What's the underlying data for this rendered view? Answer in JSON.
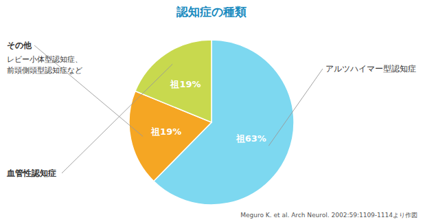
{
  "chart_data": {
    "type": "pie",
    "title": "認知症の種類",
    "categories": [
      "アルツハイマー型認知症",
      "その他",
      "血管性認知症"
    ],
    "values": [
      63,
      19,
      19
    ],
    "value_labels": [
      "祖63%",
      "祖19%",
      "祖19%"
    ],
    "data_labels": true,
    "colors": [
      "#7DD8F0",
      "#F5A623",
      "#C8D94E"
    ],
    "annotations": [
      "レビー小体型認知症、",
      "前頭側頭型認知症など"
    ],
    "source": "Meguro K. et al. Arch Neurol. 2002:59:1109-1114より作図",
    "title_color": "#1A8BBF"
  }
}
